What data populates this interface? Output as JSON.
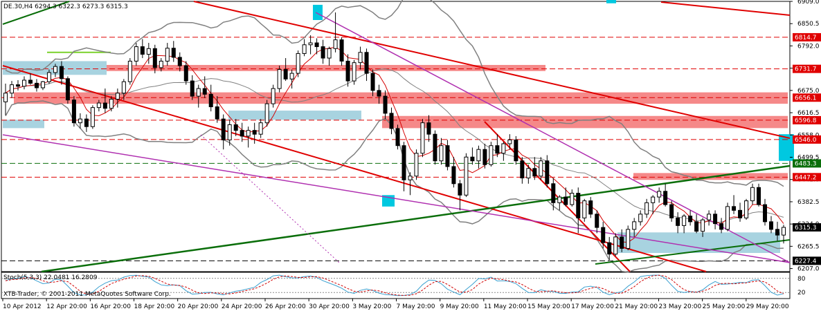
{
  "header": {
    "symbol_info": "DE.30,H4  6294.3 6322.3 6273.3 6315.3",
    "indicator_info": "Stoch(5,3,3) 22.0481 16.2809",
    "watermark": "XTB-Trader, © 2001-2011 MetaQuotes Software Corp."
  },
  "colors": {
    "bull": "#ffffff",
    "bear": "#000000",
    "zone_red": "#f26b6b",
    "zone_blue": "#a8d3e0",
    "cyan": "#00c8e0",
    "trend_red": "#e00000",
    "trend_green": "#0a6e0a",
    "trend_magenta": "#b030b0",
    "bollinger": "#808080",
    "ma": "#d40000",
    "stoch_main": "#3aa0d0",
    "stoch_signal": "#d00000"
  },
  "chart_data": {
    "type": "candlestick",
    "title": "DE.30,H4",
    "ylim": [
      6199.0,
      6909.0
    ],
    "y_ticks": [
      6909.0,
      6850.5,
      6792.0,
      6733.5,
      6675.0,
      6616.5,
      6558.0,
      6499.5,
      6441.0,
      6382.5,
      6324.0,
      6265.5,
      6207.0
    ],
    "x_labels": [
      "10 Apr 2012",
      "12 Apr 20:00",
      "16 Apr 20:00",
      "18 Apr 20:00",
      "20 Apr 20:00",
      "24 Apr 20:00",
      "26 Apr 20:00",
      "30 Apr 20:00",
      "3 May 20:00",
      "7 May 20:00",
      "9 May 20:00",
      "11 May 20:00",
      "15 May 20:00",
      "17 May 20:00",
      "21 May 20:00",
      "23 May 20:00",
      "25 May 20:00",
      "29 May 20:00"
    ],
    "price_markers": [
      {
        "label": "6814.7",
        "value": 6814.7,
        "color": "#e00000"
      },
      {
        "label": "6731.7",
        "value": 6731.7,
        "color": "#e00000"
      },
      {
        "label": "6656.1",
        "value": 6656.1,
        "color": "#e00000"
      },
      {
        "label": "6596.8",
        "value": 6596.8,
        "color": "#e00000"
      },
      {
        "label": "6546.0",
        "value": 6546.0,
        "color": "#e00000"
      },
      {
        "label": "6483.3",
        "value": 6483.3,
        "color": "#0a6e0a"
      },
      {
        "label": "6447.2",
        "value": 6447.2,
        "color": "#e00000"
      },
      {
        "label": "6315.3",
        "value": 6315.3,
        "color": "#000000"
      },
      {
        "label": "6227.4",
        "value": 6227.4,
        "color": "#000000"
      }
    ],
    "candles": [
      [
        6645,
        6693,
        6610,
        6668
      ],
      [
        6668,
        6700,
        6655,
        6690
      ],
      [
        6690,
        6702,
        6675,
        6686
      ],
      [
        6686,
        6712,
        6678,
        6702
      ],
      [
        6702,
        6720,
        6690,
        6694
      ],
      [
        6694,
        6705,
        6672,
        6682
      ],
      [
        6682,
        6700,
        6676,
        6698
      ],
      [
        6698,
        6730,
        6692,
        6722
      ],
      [
        6722,
        6745,
        6710,
        6738
      ],
      [
        6738,
        6752,
        6690,
        6706
      ],
      [
        6706,
        6712,
        6640,
        6650
      ],
      [
        6650,
        6660,
        6580,
        6590
      ],
      [
        6590,
        6615,
        6575,
        6600
      ],
      [
        6600,
        6612,
        6566,
        6580
      ],
      [
        6580,
        6636,
        6574,
        6630
      ],
      [
        6630,
        6650,
        6620,
        6642
      ],
      [
        6642,
        6680,
        6616,
        6628
      ],
      [
        6628,
        6660,
        6620,
        6652
      ],
      [
        6652,
        6680,
        6630,
        6668
      ],
      [
        6668,
        6705,
        6650,
        6698
      ],
      [
        6698,
        6760,
        6690,
        6752
      ],
      [
        6752,
        6800,
        6740,
        6790
      ],
      [
        6790,
        6810,
        6760,
        6770
      ],
      [
        6770,
        6800,
        6745,
        6785
      ],
      [
        6785,
        6795,
        6720,
        6735
      ],
      [
        6735,
        6760,
        6725,
        6752
      ],
      [
        6752,
        6800,
        6740,
        6786
      ],
      [
        6786,
        6805,
        6750,
        6762
      ],
      [
        6762,
        6775,
        6725,
        6740
      ],
      [
        6740,
        6752,
        6690,
        6700
      ],
      [
        6700,
        6715,
        6650,
        6660
      ],
      [
        6660,
        6690,
        6630,
        6680
      ],
      [
        6680,
        6712,
        6655,
        6665
      ],
      [
        6665,
        6690,
        6620,
        6632
      ],
      [
        6632,
        6660,
        6590,
        6600
      ],
      [
        6600,
        6612,
        6520,
        6545
      ],
      [
        6545,
        6598,
        6530,
        6585
      ],
      [
        6585,
        6600,
        6555,
        6570
      ],
      [
        6570,
        6590,
        6540,
        6555
      ],
      [
        6555,
        6580,
        6525,
        6570
      ],
      [
        6570,
        6590,
        6535,
        6560
      ],
      [
        6560,
        6600,
        6550,
        6590
      ],
      [
        6590,
        6650,
        6580,
        6640
      ],
      [
        6640,
        6690,
        6630,
        6680
      ],
      [
        6680,
        6740,
        6670,
        6730
      ],
      [
        6730,
        6760,
        6700,
        6705
      ],
      [
        6705,
        6730,
        6680,
        6720
      ],
      [
        6720,
        6780,
        6710,
        6772
      ],
      [
        6772,
        6810,
        6765,
        6795
      ],
      [
        6795,
        6820,
        6770,
        6800
      ],
      [
        6800,
        6812,
        6770,
        6790
      ],
      [
        6790,
        6808,
        6745,
        6760
      ],
      [
        6760,
        6790,
        6740,
        6785
      ],
      [
        6785,
        6880,
        6775,
        6808
      ],
      [
        6808,
        6815,
        6740,
        6752
      ],
      [
        6752,
        6770,
        6685,
        6700
      ],
      [
        6700,
        6755,
        6690,
        6748
      ],
      [
        6748,
        6790,
        6730,
        6775
      ],
      [
        6775,
        6785,
        6700,
        6720
      ],
      [
        6720,
        6730,
        6660,
        6675
      ],
      [
        6675,
        6690,
        6640,
        6660
      ],
      [
        6660,
        6675,
        6600,
        6615
      ],
      [
        6615,
        6630,
        6560,
        6575
      ],
      [
        6575,
        6585,
        6520,
        6530
      ],
      [
        6530,
        6540,
        6410,
        6440
      ],
      [
        6440,
        6460,
        6400,
        6450
      ],
      [
        6450,
        6520,
        6440,
        6510
      ],
      [
        6510,
        6600,
        6500,
        6590
      ],
      [
        6590,
        6610,
        6540,
        6560
      ],
      [
        6560,
        6570,
        6480,
        6490
      ],
      [
        6490,
        6550,
        6480,
        6530
      ],
      [
        6530,
        6545,
        6465,
        6475
      ],
      [
        6475,
        6500,
        6420,
        6430
      ],
      [
        6430,
        6440,
        6360,
        6400
      ],
      [
        6400,
        6510,
        6395,
        6500
      ],
      [
        6500,
        6525,
        6480,
        6490
      ],
      [
        6490,
        6530,
        6470,
        6520
      ],
      [
        6520,
        6535,
        6470,
        6480
      ],
      [
        6480,
        6540,
        6475,
        6530
      ],
      [
        6530,
        6560,
        6500,
        6510
      ],
      [
        6510,
        6540,
        6490,
        6535
      ],
      [
        6535,
        6560,
        6520,
        6545
      ],
      [
        6545,
        6555,
        6480,
        6490
      ],
      [
        6490,
        6500,
        6430,
        6445
      ],
      [
        6445,
        6480,
        6430,
        6470
      ],
      [
        6470,
        6500,
        6440,
        6450
      ],
      [
        6450,
        6500,
        6440,
        6490
      ],
      [
        6490,
        6505,
        6420,
        6430
      ],
      [
        6430,
        6445,
        6360,
        6380
      ],
      [
        6380,
        6400,
        6360,
        6395
      ],
      [
        6395,
        6420,
        6370,
        6375
      ],
      [
        6375,
        6415,
        6370,
        6405
      ],
      [
        6405,
        6420,
        6300,
        6340
      ],
      [
        6340,
        6390,
        6330,
        6385
      ],
      [
        6385,
        6395,
        6340,
        6350
      ],
      [
        6350,
        6360,
        6300,
        6315
      ],
      [
        6315,
        6330,
        6260,
        6275
      ],
      [
        6275,
        6290,
        6230,
        6245
      ],
      [
        6245,
        6300,
        6240,
        6290
      ],
      [
        6290,
        6310,
        6250,
        6260
      ],
      [
        6260,
        6320,
        6255,
        6310
      ],
      [
        6310,
        6340,
        6290,
        6330
      ],
      [
        6330,
        6360,
        6320,
        6350
      ],
      [
        6350,
        6390,
        6340,
        6380
      ],
      [
        6380,
        6400,
        6350,
        6395
      ],
      [
        6395,
        6420,
        6380,
        6410
      ],
      [
        6410,
        6430,
        6370,
        6375
      ],
      [
        6375,
        6385,
        6330,
        6340
      ],
      [
        6340,
        6355,
        6300,
        6320
      ],
      [
        6320,
        6350,
        6300,
        6345
      ],
      [
        6345,
        6360,
        6320,
        6330
      ],
      [
        6330,
        6350,
        6300,
        6305
      ],
      [
        6305,
        6340,
        6290,
        6335
      ],
      [
        6335,
        6360,
        6320,
        6350
      ],
      [
        6350,
        6360,
        6310,
        6325
      ],
      [
        6325,
        6340,
        6300,
        6310
      ],
      [
        6310,
        6380,
        6305,
        6370
      ],
      [
        6370,
        6400,
        6350,
        6360
      ],
      [
        6360,
        6380,
        6330,
        6340
      ],
      [
        6340,
        6390,
        6335,
        6385
      ],
      [
        6385,
        6430,
        6375,
        6420
      ],
      [
        6420,
        6430,
        6370,
        6375
      ],
      [
        6375,
        6390,
        6320,
        6330
      ],
      [
        6330,
        6345,
        6300,
        6310
      ],
      [
        6310,
        6330,
        6280,
        6295
      ],
      [
        6295,
        6322,
        6273,
        6315.3
      ]
    ]
  }
}
